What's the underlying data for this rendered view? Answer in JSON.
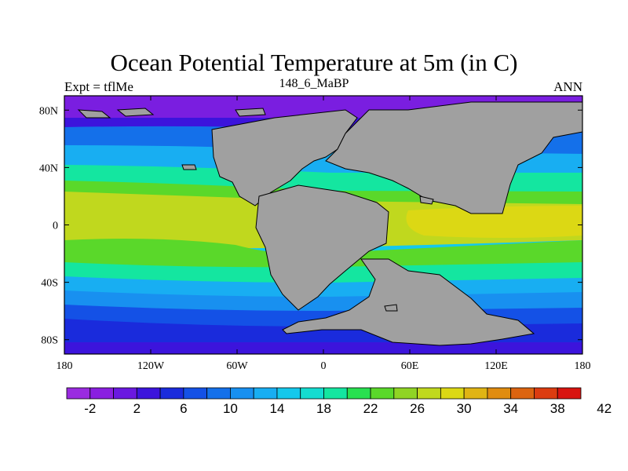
{
  "title": "Ocean Potential Temperature at 5m (in C)",
  "left_label": "Expt = tflMe",
  "center_label": "148_6_MaBP",
  "right_label": "ANN",
  "map": {
    "lat_ticks": [
      "80N",
      "40N",
      "0",
      "40S",
      "80S"
    ],
    "lat_values": [
      80,
      40,
      0,
      -40,
      -80
    ],
    "lon_ticks": [
      "180",
      "120W",
      "60W",
      "0",
      "60E",
      "120E",
      "180"
    ],
    "lon_values": [
      -180,
      -120,
      -60,
      0,
      60,
      120,
      180
    ],
    "land_color": "#a0a0a0"
  },
  "colorbar": {
    "labels": [
      "-2",
      "2",
      "6",
      "10",
      "14",
      "18",
      "22",
      "26",
      "30",
      "34",
      "38",
      "42"
    ],
    "colors": [
      "#9a2be0",
      "#8a1fe0",
      "#6a18e0",
      "#3c14dc",
      "#1a2bdc",
      "#1451e6",
      "#1470ea",
      "#1890f0",
      "#18aef2",
      "#14c8ec",
      "#14dcd0",
      "#14e6a0",
      "#28e050",
      "#5ad82a",
      "#90d424",
      "#c0d81e",
      "#dcd814",
      "#e0b414",
      "#e08c10",
      "#dc6410",
      "#dc3c10",
      "#d81410"
    ],
    "brand_grey": "#a0a0a0"
  }
}
